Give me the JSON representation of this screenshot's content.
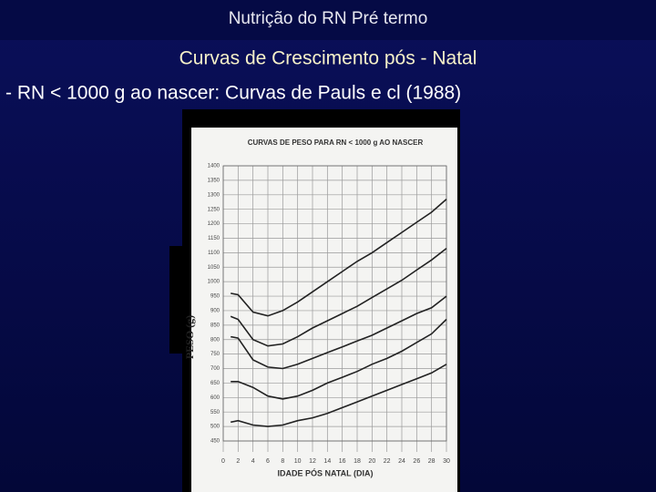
{
  "slide": {
    "header": "Nutrição do RN Pré termo",
    "title": "Curvas de Crescimento pós - Natal",
    "subtitle": "- RN < 1000 g ao nascer: Curvas de Pauls e cl (1988)"
  },
  "chart_data": {
    "type": "line",
    "title": "CURVAS DE PESO PARA RN < 1000 g  AO NASCER",
    "x_label": "IDADE PÓS NATAL (DIA)",
    "y_label": "PESO (g)",
    "x": [
      1,
      2,
      4,
      6,
      8,
      10,
      12,
      14,
      16,
      18,
      20,
      22,
      24,
      26,
      28,
      30
    ],
    "series": [
      {
        "color": "#222222",
        "values": [
          960,
          955,
          895,
          882,
          900,
          930,
          965,
          1000,
          1035,
          1070,
          1100,
          1135,
          1170,
          1205,
          1240,
          1285
        ]
      },
      {
        "color": "#222222",
        "values": [
          880,
          870,
          800,
          778,
          785,
          810,
          840,
          865,
          890,
          915,
          945,
          975,
          1005,
          1040,
          1075,
          1115
        ]
      },
      {
        "color": "#222222",
        "values": [
          810,
          805,
          730,
          705,
          700,
          715,
          735,
          755,
          775,
          795,
          815,
          840,
          865,
          890,
          910,
          950
        ]
      },
      {
        "color": "#222222",
        "values": [
          655,
          655,
          635,
          605,
          595,
          605,
          625,
          650,
          670,
          690,
          715,
          735,
          760,
          790,
          820,
          870
        ]
      },
      {
        "color": "#222222",
        "values": [
          515,
          520,
          505,
          500,
          505,
          520,
          530,
          545,
          565,
          585,
          605,
          625,
          645,
          665,
          685,
          715
        ]
      }
    ],
    "xlim": [
      0,
      30
    ],
    "xticks": [
      0,
      2,
      4,
      6,
      8,
      10,
      12,
      14,
      16,
      18,
      20,
      22,
      24,
      26,
      28,
      30
    ],
    "ylim": [
      450,
      1400
    ],
    "yticks": [
      450,
      500,
      550,
      600,
      650,
      700,
      750,
      800,
      850,
      900,
      950,
      1000,
      1050,
      1100,
      1150,
      1200,
      1250,
      1300,
      1350,
      1400
    ],
    "grid": true
  }
}
